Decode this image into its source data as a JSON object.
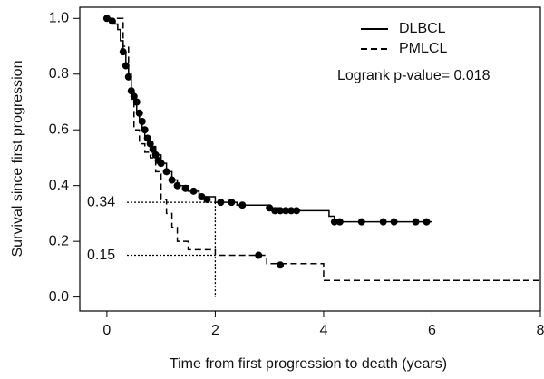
{
  "chart_data": {
    "type": "step",
    "x_label": "Time from first progression to death (years)",
    "y_label": "Survival since first progression",
    "annotation": "Logrank p-value= 0.018",
    "xlim": [
      -0.5,
      8
    ],
    "xticks": [
      0,
      2,
      4,
      6,
      8
    ],
    "ylim": [
      -0.05,
      1.04
    ],
    "yticks": [
      {
        "value": 0,
        "label": "0.0"
      },
      0.2,
      0.4,
      0.6,
      0.8,
      {
        "value": 1,
        "label": "1.0"
      }
    ],
    "reference_lines": [
      {
        "x": 2,
        "value": 0.34
      },
      {
        "x": 2,
        "value": 0.15
      }
    ],
    "series": [
      {
        "name": "DLBCL",
        "color": "#000000",
        "dash": "solid",
        "x": [
          0,
          0.1,
          0.15,
          0.2,
          0.25,
          0.3,
          0.35,
          0.4,
          0.45,
          0.5,
          0.55,
          0.6,
          0.65,
          0.7,
          0.8,
          0.9,
          1.0,
          1.1,
          1.2,
          1.3,
          1.5,
          1.7,
          2.0,
          2.4,
          3.0,
          3.2,
          4.1,
          4.2,
          6.0
        ],
        "values": [
          1.0,
          0.99,
          0.98,
          0.96,
          0.92,
          0.88,
          0.83,
          0.79,
          0.74,
          0.7,
          0.66,
          0.63,
          0.6,
          0.57,
          0.54,
          0.51,
          0.48,
          0.45,
          0.42,
          0.4,
          0.38,
          0.36,
          0.34,
          0.33,
          0.32,
          0.31,
          0.29,
          0.27,
          0.27
        ],
        "censored_x": [
          0,
          0.1,
          0.3,
          0.35,
          0.4,
          0.45,
          0.5,
          0.55,
          0.6,
          0.65,
          0.7,
          0.75,
          0.8,
          0.85,
          0.9,
          0.95,
          1.0,
          1.1,
          1.2,
          1.3,
          1.45,
          1.6,
          1.75,
          1.85,
          2.1,
          2.3,
          2.5,
          3.0,
          3.1,
          3.2,
          3.3,
          3.4,
          3.5,
          4.2,
          4.3,
          4.7,
          5.1,
          5.3,
          5.7,
          5.9
        ],
        "censored_values": [
          1.0,
          0.99,
          0.88,
          0.83,
          0.79,
          0.74,
          0.72,
          0.7,
          0.66,
          0.63,
          0.6,
          0.57,
          0.55,
          0.53,
          0.51,
          0.49,
          0.48,
          0.45,
          0.42,
          0.4,
          0.39,
          0.38,
          0.36,
          0.35,
          0.34,
          0.34,
          0.33,
          0.32,
          0.31,
          0.31,
          0.31,
          0.31,
          0.31,
          0.27,
          0.27,
          0.27,
          0.27,
          0.27,
          0.27,
          0.27
        ]
      },
      {
        "name": "PMLCL",
        "color": "#000000",
        "dash": "dashed",
        "x": [
          0,
          0.3,
          0.4,
          0.45,
          0.5,
          0.6,
          0.7,
          0.8,
          0.9,
          1.0,
          1.1,
          1.2,
          1.3,
          1.5,
          2.0,
          2.95,
          4.0,
          8.0
        ],
        "values": [
          1.0,
          0.9,
          0.8,
          0.7,
          0.6,
          0.55,
          0.52,
          0.5,
          0.45,
          0.35,
          0.3,
          0.25,
          0.2,
          0.17,
          0.15,
          0.12,
          0.06,
          0.06
        ],
        "censored_x": [
          2.8,
          3.2
        ],
        "censored_values": [
          0.15,
          0.115
        ]
      }
    ]
  }
}
